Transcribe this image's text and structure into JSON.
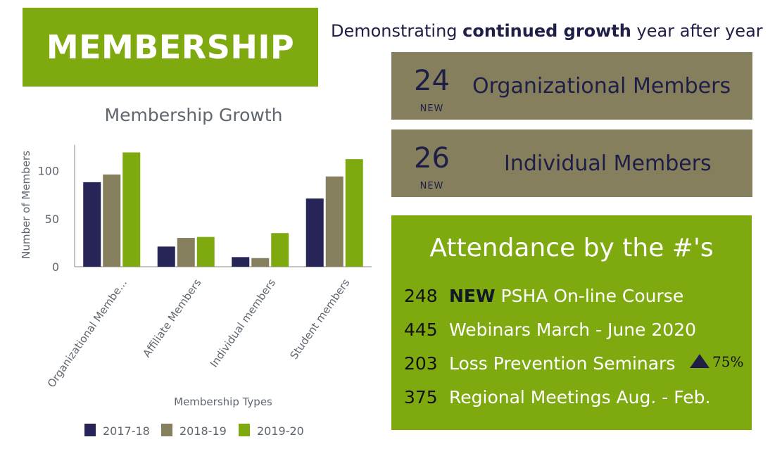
{
  "banner": {
    "title": "MEMBERSHIP"
  },
  "tagline": {
    "pre": "Demonstrating ",
    "bold": "continued growth",
    "post": " year after year"
  },
  "stats": [
    {
      "number": "24",
      "badge": "NEW",
      "label": "Organizational Members"
    },
    {
      "number": "26",
      "badge": "NEW",
      "label": "Individual Members"
    }
  ],
  "attendance": {
    "title": "Attendance by the #'s",
    "rows": [
      {
        "number": "248",
        "emphasis": "NEW",
        "label": " PSHA On-line Course"
      },
      {
        "number": "445",
        "emphasis": "",
        "label": "Webinars March - June 2020"
      },
      {
        "number": "203",
        "emphasis": "",
        "label": "Loss Prevention Seminars"
      },
      {
        "number": "375",
        "emphasis": "",
        "label": "Regional Meetings Aug. - Feb."
      }
    ],
    "growth_pct": "75%",
    "growth_icon": "triangle-up-icon"
  },
  "chart_data": {
    "type": "bar",
    "title": "Membership Growth",
    "xlabel": "Membership Types",
    "ylabel": "Number of Members",
    "categories": [
      "Organizational Membe...",
      "Affiliate Members",
      "Individual members",
      "Student members"
    ],
    "series": [
      {
        "name": "2017-18",
        "color": "#272458",
        "values": [
          88,
          21,
          10,
          71
        ]
      },
      {
        "name": "2018-19",
        "color": "#857f5e",
        "values": [
          96,
          30,
          9,
          94
        ]
      },
      {
        "name": "2019-20",
        "color": "#7eaa10",
        "values": [
          119,
          31,
          35,
          112
        ]
      }
    ],
    "yticks": [
      0,
      50,
      100
    ],
    "ylim": [
      0,
      127
    ],
    "legend": "bottom",
    "grid": false
  }
}
